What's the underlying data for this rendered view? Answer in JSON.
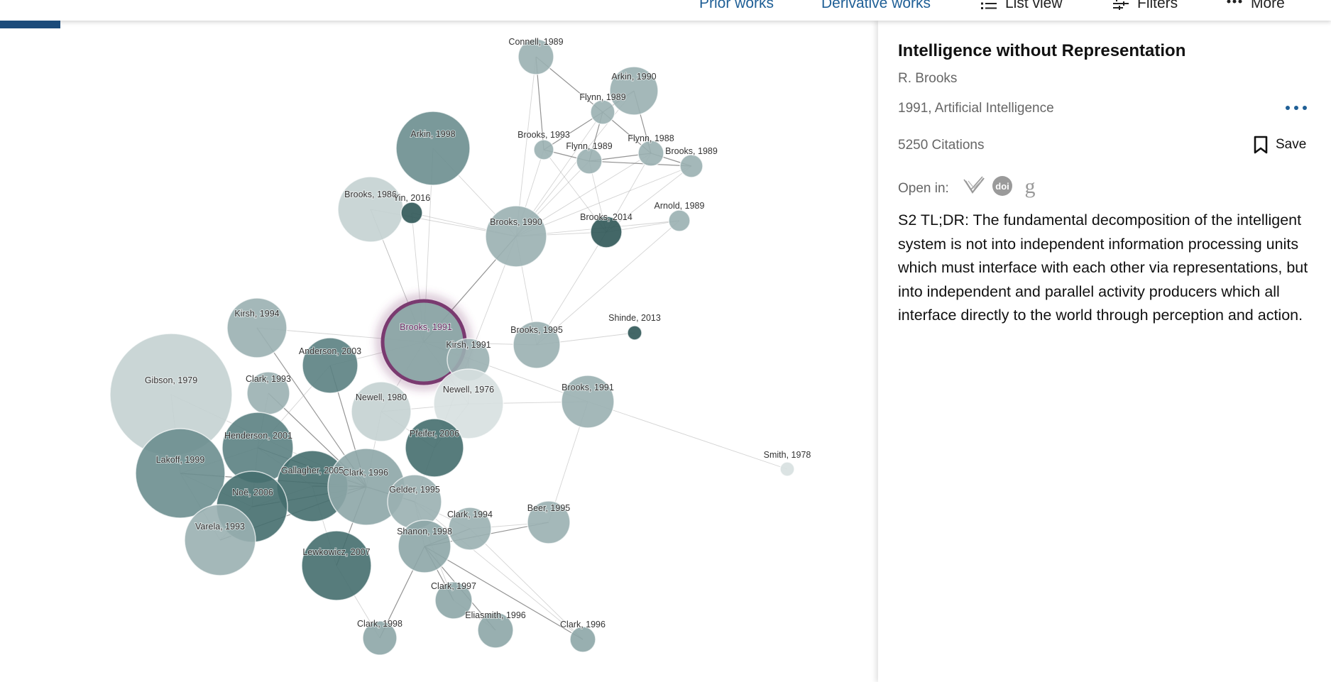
{
  "toolbar": {
    "prior_works": "Prior works",
    "derivative_works": "Derivative works",
    "list_view": "List view",
    "filters": "Filters",
    "more": "More"
  },
  "paper": {
    "title": "Intelligence without Representation",
    "author": "R. Brooks",
    "venue": "1991, Artificial Intelligence",
    "citations": "5250 Citations",
    "save_label": "Save",
    "open_in_label": "Open in:",
    "open_in_icons": [
      "semantic-scholar-icon",
      "doi-icon",
      "google-scholar-icon"
    ],
    "doi_text": "doi",
    "scholar_text": "g",
    "tldr": "S2 TL;DR: The fundamental decomposition of the intelligent system is not into independent information processing units which must interface with each other via representations, but into independent and parallel activity producers which all interface directly to the world through perception and action."
  },
  "colors": {
    "accent_blue": "#1f5f96",
    "selected_ring": "#7a3a70",
    "node_light": "#c7d3d4",
    "node_mid": "#8fa8a9",
    "node_dark": "#41696a"
  },
  "graph": {
    "nodes": [
      {
        "label": "Connell, 1989",
        "tone": "mid"
      },
      {
        "label": "Arkin, 1990",
        "tone": "mid"
      },
      {
        "label": "Flynn, 1989",
        "tone": "mid"
      },
      {
        "label": "Brooks, 1993",
        "tone": "mid"
      },
      {
        "label": "Flynn, 1989",
        "tone": "mid"
      },
      {
        "label": "Flynn, 1988",
        "tone": "mid"
      },
      {
        "label": "Brooks, 1989",
        "tone": "mid"
      },
      {
        "label": "Arkin, 1998",
        "tone": "dark2"
      },
      {
        "label": "Brooks, 1986",
        "tone": "light"
      },
      {
        "label": "Yin, 2016",
        "tone": "darkest"
      },
      {
        "label": "Brooks, 1990",
        "tone": "mid"
      },
      {
        "label": "Brooks, 2014",
        "tone": "darkest"
      },
      {
        "label": "Arnold, 1989",
        "tone": "mid"
      },
      {
        "label": "Kirsh, 1994",
        "tone": "mid"
      },
      {
        "label": "Anderson, 2003",
        "tone": "dark"
      },
      {
        "label": "Brooks, 1991",
        "tone": "selected"
      },
      {
        "label": "Kirsh, 1991",
        "tone": "mid"
      },
      {
        "label": "Brooks, 1995",
        "tone": "mid"
      },
      {
        "label": "Shinde, 2013",
        "tone": "darkest"
      },
      {
        "label": "Gibson, 1979",
        "tone": "light"
      },
      {
        "label": "Clark, 1993",
        "tone": "mid"
      },
      {
        "label": "Newell, 1980",
        "tone": "light"
      },
      {
        "label": "Newell, 1976",
        "tone": "lighter"
      },
      {
        "label": "Brooks, 1991",
        "tone": "mid"
      },
      {
        "label": "Henderson, 2001",
        "tone": "dark"
      },
      {
        "label": "Pfeifer, 2006",
        "tone": "darker"
      },
      {
        "label": "Smith, 1978",
        "tone": "lighter"
      },
      {
        "label": "Lakoff, 1999",
        "tone": "dark2"
      },
      {
        "label": "Gallagher, 2005",
        "tone": "darker"
      },
      {
        "label": "Clark, 1996",
        "tone": "mid2"
      },
      {
        "label": "Noë, 2006",
        "tone": "darker"
      },
      {
        "label": "Gelder, 1995",
        "tone": "mid"
      },
      {
        "label": "Clark, 1994",
        "tone": "mid"
      },
      {
        "label": "Beer, 1995",
        "tone": "mid"
      },
      {
        "label": "Varela, 1993",
        "tone": "mid"
      },
      {
        "label": "Shanon, 1998",
        "tone": "mid2"
      },
      {
        "label": "Lewkowicz, 2007",
        "tone": "darker"
      },
      {
        "label": "Clark, 1997",
        "tone": "mid2"
      },
      {
        "label": "Eliasmith, 1996",
        "tone": "mid2"
      },
      {
        "label": "Clark, 1998",
        "tone": "mid2"
      },
      {
        "label": "Clark, 1996",
        "tone": "mid2"
      }
    ]
  }
}
